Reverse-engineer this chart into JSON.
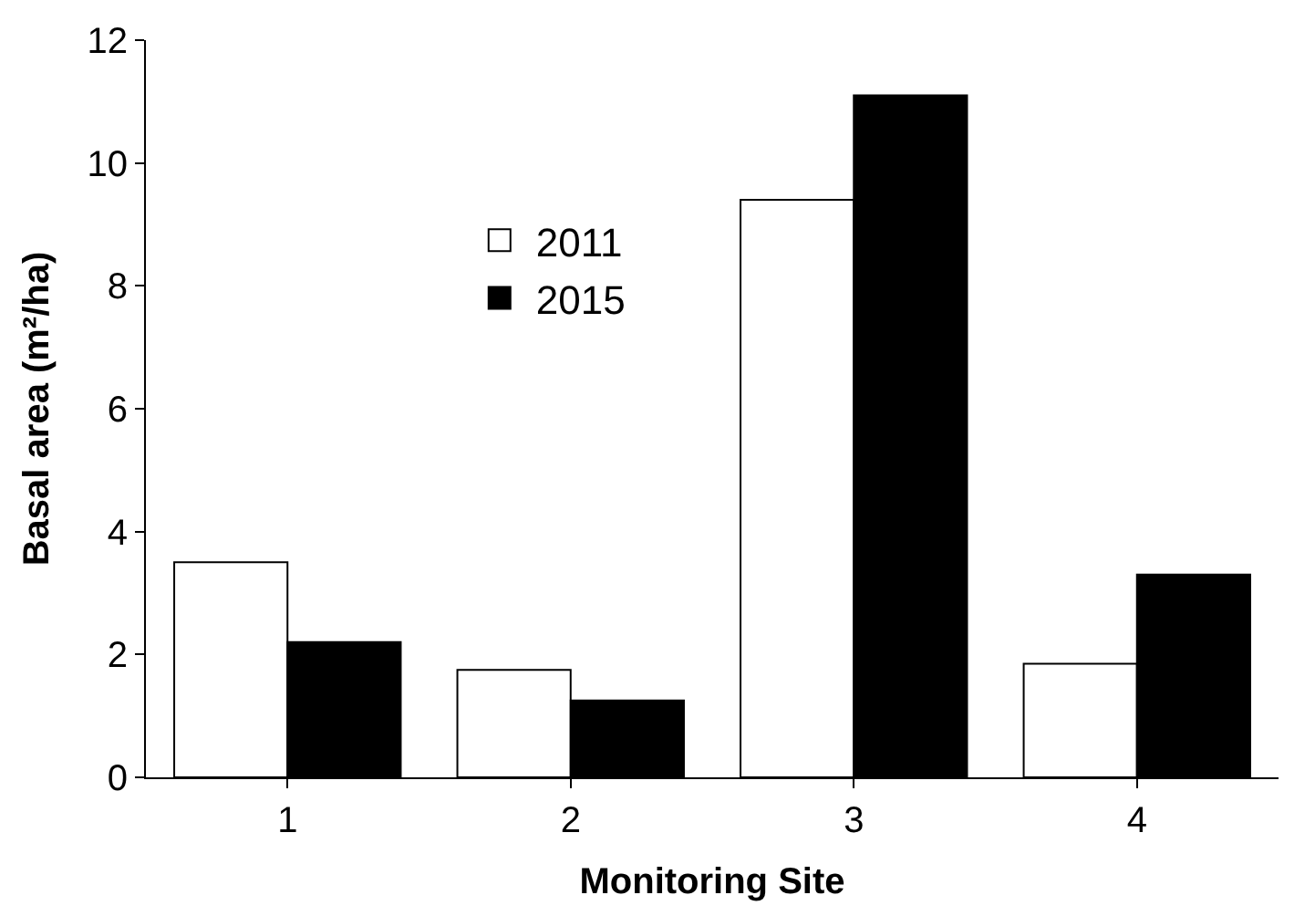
{
  "chart_data": {
    "type": "bar",
    "xlabel": "Monitoring Site",
    "ylabel": "Basal area (m²/ha)",
    "categories": [
      "1",
      "2",
      "3",
      "4"
    ],
    "series": [
      {
        "name": "2011",
        "color": "#ffffff",
        "values": [
          3.5,
          1.75,
          9.4,
          1.85
        ]
      },
      {
        "name": "2015",
        "color": "#000000",
        "values": [
          2.2,
          1.25,
          11.1,
          3.3
        ]
      }
    ],
    "ylim": [
      0,
      12
    ],
    "yticks": [
      0,
      2,
      4,
      6,
      8,
      10,
      12
    ],
    "legend": "top left"
  }
}
